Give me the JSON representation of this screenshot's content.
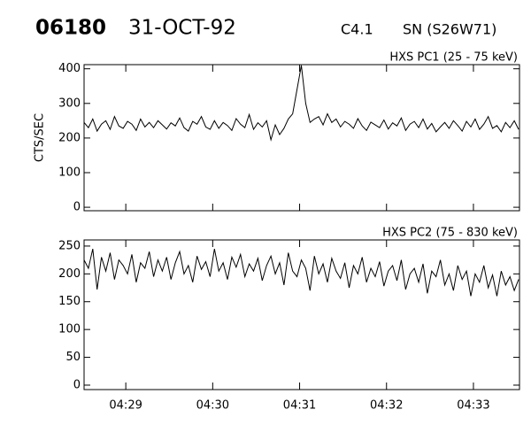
{
  "header": {
    "event_id": "06180",
    "date": "31-OCT-92",
    "flare_class": "C4.1",
    "location": "SN (S26W71)"
  },
  "chart_data": [
    {
      "type": "line",
      "title": "HXS PC1 (25 - 75 keV)",
      "y_label": "CTS/SEC",
      "color": "#000000",
      "xlim": [
        28.52,
        33.53
      ],
      "ylim": [
        -10,
        412
      ],
      "xticks": [
        29,
        30,
        31,
        32,
        33
      ],
      "yticks": [
        0,
        100,
        200,
        300,
        400
      ],
      "x": [
        28.52,
        28.57,
        28.62,
        28.67,
        28.72,
        28.77,
        28.82,
        28.87,
        28.92,
        28.97,
        29.02,
        29.07,
        29.12,
        29.17,
        29.22,
        29.27,
        29.32,
        29.37,
        29.42,
        29.47,
        29.52,
        29.57,
        29.62,
        29.67,
        29.72,
        29.77,
        29.82,
        29.87,
        29.92,
        29.97,
        30.02,
        30.07,
        30.12,
        30.17,
        30.22,
        30.27,
        30.32,
        30.37,
        30.42,
        30.47,
        30.52,
        30.57,
        30.62,
        30.67,
        30.72,
        30.77,
        30.82,
        30.87,
        30.92,
        30.97,
        31.02,
        31.07,
        31.12,
        31.17,
        31.22,
        31.27,
        31.32,
        31.37,
        31.42,
        31.47,
        31.52,
        31.57,
        31.62,
        31.67,
        31.72,
        31.77,
        31.82,
        31.87,
        31.92,
        31.97,
        32.02,
        32.07,
        32.12,
        32.17,
        32.22,
        32.27,
        32.32,
        32.37,
        32.42,
        32.47,
        32.52,
        32.57,
        32.62,
        32.67,
        32.72,
        32.77,
        32.82,
        32.87,
        32.92,
        32.97,
        33.02,
        33.07,
        33.12,
        33.17,
        33.22,
        33.27,
        33.32,
        33.37,
        33.42,
        33.47,
        33.52
      ],
      "values": [
        245,
        230,
        255,
        220,
        240,
        250,
        225,
        262,
        235,
        228,
        248,
        240,
        222,
        255,
        232,
        245,
        230,
        250,
        238,
        226,
        244,
        235,
        258,
        230,
        220,
        248,
        240,
        262,
        232,
        225,
        250,
        228,
        245,
        236,
        222,
        256,
        240,
        230,
        268,
        225,
        244,
        232,
        250,
        195,
        238,
        210,
        228,
        255,
        270,
        340,
        410,
        300,
        245,
        255,
        262,
        238,
        270,
        245,
        255,
        232,
        248,
        240,
        228,
        256,
        235,
        222,
        246,
        238,
        230,
        252,
        226,
        244,
        235,
        258,
        222,
        240,
        248,
        230,
        255,
        226,
        242,
        218,
        232,
        245,
        228,
        250,
        236,
        220,
        248,
        232,
        255,
        225,
        240,
        262,
        228,
        236,
        218,
        245,
        230,
        250,
        225
      ]
    },
    {
      "type": "line",
      "title": "HXS PC2 (75 - 830 keV)",
      "color": "#000000",
      "xlim": [
        28.52,
        33.53
      ],
      "ylim": [
        -8,
        261
      ],
      "xticks": [
        {
          "value": 29,
          "label": "04:29"
        },
        {
          "value": 30,
          "label": "04:30"
        },
        {
          "value": 31,
          "label": "04:31"
        },
        {
          "value": 32,
          "label": "04:32"
        },
        {
          "value": 33,
          "label": "04:33"
        }
      ],
      "yticks": [
        0,
        50,
        100,
        150,
        200,
        250
      ],
      "x": [
        28.52,
        28.57,
        28.62,
        28.67,
        28.72,
        28.77,
        28.82,
        28.87,
        28.92,
        28.97,
        29.02,
        29.07,
        29.12,
        29.17,
        29.22,
        29.27,
        29.32,
        29.37,
        29.42,
        29.47,
        29.52,
        29.57,
        29.62,
        29.67,
        29.72,
        29.77,
        29.82,
        29.87,
        29.92,
        29.97,
        30.02,
        30.07,
        30.12,
        30.17,
        30.22,
        30.27,
        30.32,
        30.37,
        30.42,
        30.47,
        30.52,
        30.57,
        30.62,
        30.67,
        30.72,
        30.77,
        30.82,
        30.87,
        30.92,
        30.97,
        31.02,
        31.07,
        31.12,
        31.17,
        31.22,
        31.27,
        31.32,
        31.37,
        31.42,
        31.47,
        31.52,
        31.57,
        31.62,
        31.67,
        31.72,
        31.77,
        31.82,
        31.87,
        31.92,
        31.97,
        32.02,
        32.07,
        32.12,
        32.17,
        32.22,
        32.27,
        32.32,
        32.37,
        32.42,
        32.47,
        32.52,
        32.57,
        32.62,
        32.67,
        32.72,
        32.77,
        32.82,
        32.87,
        32.92,
        32.97,
        33.02,
        33.07,
        33.12,
        33.17,
        33.22,
        33.27,
        33.32,
        33.37,
        33.42,
        33.47,
        33.52
      ],
      "values": [
        225,
        210,
        245,
        172,
        230,
        205,
        238,
        190,
        225,
        215,
        200,
        235,
        185,
        220,
        210,
        240,
        195,
        225,
        205,
        230,
        190,
        220,
        240,
        200,
        215,
        185,
        232,
        208,
        222,
        195,
        245,
        205,
        220,
        190,
        230,
        212,
        235,
        195,
        218,
        205,
        228,
        188,
        215,
        232,
        200,
        220,
        180,
        238,
        205,
        195,
        225,
        210,
        170,
        232,
        200,
        218,
        185,
        228,
        205,
        192,
        220,
        175,
        215,
        200,
        230,
        185,
        210,
        195,
        222,
        178,
        205,
        215,
        188,
        225,
        172,
        200,
        210,
        185,
        218,
        165,
        205,
        195,
        225,
        180,
        200,
        170,
        215,
        190,
        205,
        160,
        200,
        185,
        215,
        175,
        198,
        160,
        205,
        180,
        195,
        170,
        190
      ]
    }
  ]
}
